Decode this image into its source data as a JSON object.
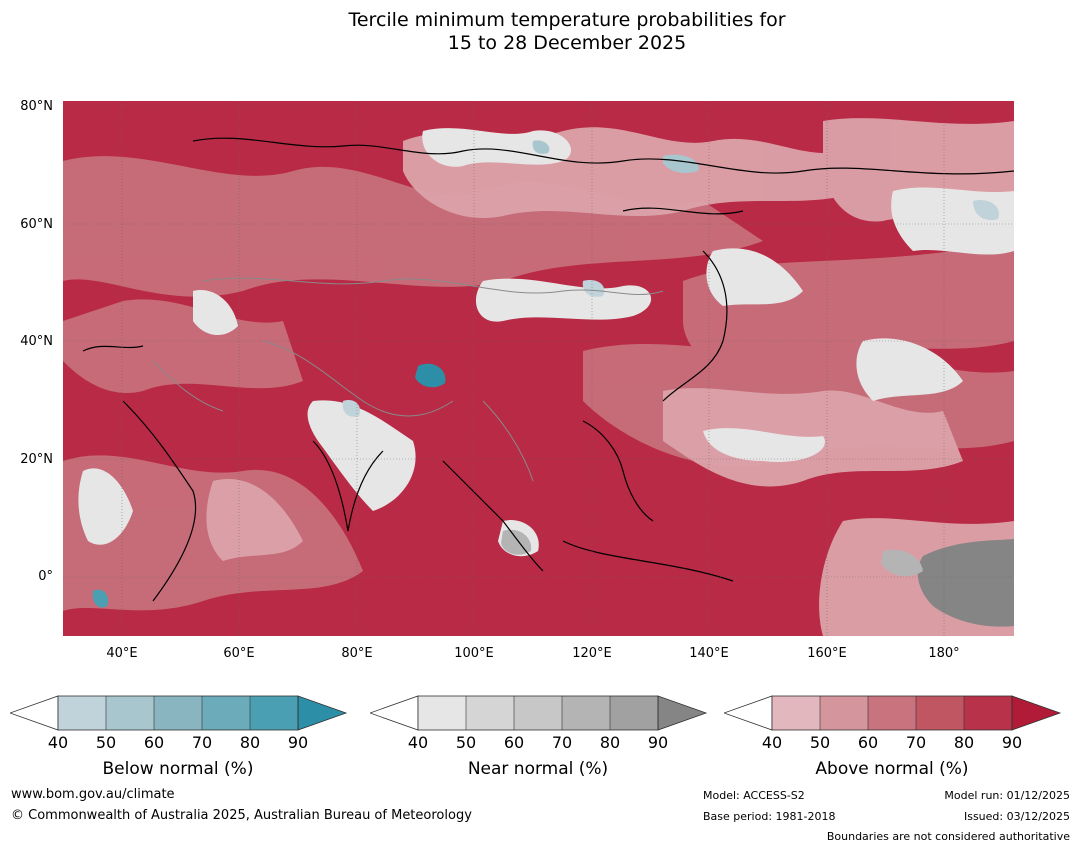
{
  "title_line1": "Tercile minimum temperature probabilities for",
  "title_line2": "15 to 28 December 2025",
  "lat_labels": [
    "80°N",
    "60°N",
    "40°N",
    "20°N",
    "0°"
  ],
  "lon_labels": [
    "40°E",
    "60°E",
    "80°E",
    "100°E",
    "120°E",
    "140°E",
    "160°E",
    "180°"
  ],
  "legends": [
    {
      "title": "Below normal (%)",
      "ticks": [
        "40",
        "50",
        "60",
        "70",
        "80",
        "90"
      ],
      "colors": [
        "#c0d3da",
        "#a7c6cd",
        "#89b5c1",
        "#6cacba",
        "#4aa0b2",
        "#2c8fa7"
      ]
    },
    {
      "title": "Near normal (%)",
      "ticks": [
        "40",
        "50",
        "60",
        "70",
        "80",
        "90"
      ],
      "colors": [
        "#e6e6e6",
        "#d5d5d5",
        "#c7c7c7",
        "#b4b4b4",
        "#a1a1a1",
        "#858585"
      ]
    },
    {
      "title": "Above normal (%)",
      "ticks": [
        "40",
        "50",
        "60",
        "70",
        "80",
        "90"
      ],
      "colors": [
        "#e2b7bd",
        "#d4959c",
        "#c8737d",
        "#c15663",
        "#b83249",
        "#b21b37"
      ]
    }
  ],
  "footer": {
    "website": "www.bom.gov.au/climate",
    "copyright": "© Commonwealth of Australia 2025, Australian Bureau of Meteorology",
    "model": "Model: ACCESS-S2",
    "base_period": "Base period: 1981-2018",
    "model_run": "Model run: 01/12/2025",
    "issued": "Issued: 03/12/2025",
    "disclaimer": "Boundaries are not considered authoritative"
  }
}
